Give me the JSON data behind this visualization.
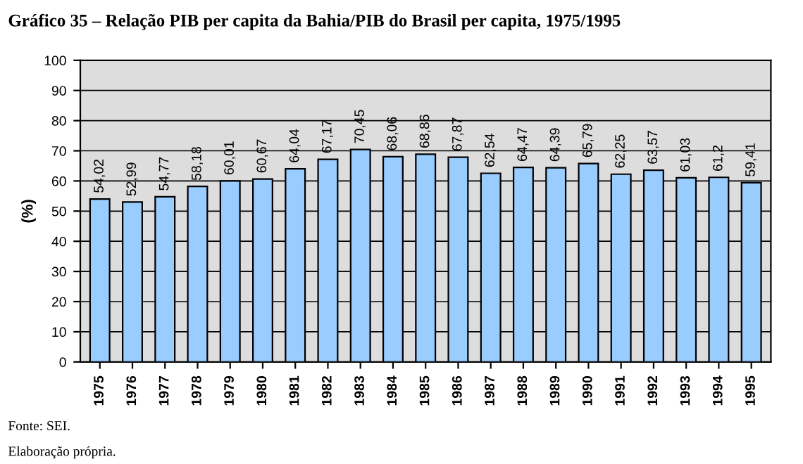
{
  "chart_data": {
    "type": "bar",
    "title": "Gráfico 35 – Relação PIB per capita da Bahia/PIB do Brasil per capita, 1975/1995",
    "ylabel": "(%)",
    "categories": [
      "1975",
      "1976",
      "1977",
      "1978",
      "1979",
      "1980",
      "1981",
      "1982",
      "1983",
      "1984",
      "1985",
      "1986",
      "1987",
      "1988",
      "1989",
      "1990",
      "1991",
      "1992",
      "1993",
      "1994",
      "1995"
    ],
    "values": [
      54.02,
      52.99,
      54.77,
      58.18,
      60.01,
      60.67,
      64.04,
      67.17,
      70.45,
      68.06,
      68.86,
      67.87,
      62.54,
      64.47,
      64.39,
      65.79,
      62.25,
      63.57,
      61.03,
      61.2,
      59.41
    ],
    "value_labels": [
      "54,02",
      "52,99",
      "54,77",
      "58,18",
      "60,01",
      "60,67",
      "64,04",
      "67,17",
      "70,45",
      "68,06",
      "68,86",
      "67,87",
      "62,54",
      "64,47",
      "64,39",
      "65,79",
      "62,25",
      "63,57",
      "61,03",
      "61,2",
      "59,41"
    ],
    "color": "#99ccff",
    "ylim": [
      0,
      100
    ],
    "yticks": [
      0,
      10,
      20,
      30,
      40,
      50,
      60,
      70,
      80,
      90,
      100
    ],
    "grid": "y",
    "legend": false,
    "annotations": [
      "Fonte: SEI.",
      "Elaboração própria."
    ]
  }
}
